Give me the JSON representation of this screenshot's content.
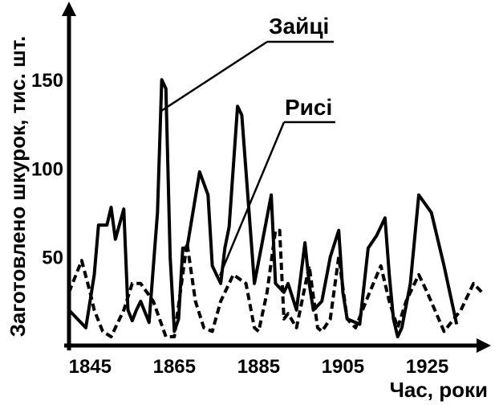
{
  "chart_data": {
    "type": "line",
    "xlabel": "Час, роки",
    "ylabel": "Заготовлено шкурок, тис. шт.",
    "xlim": [
      1840,
      1939
    ],
    "ylim": [
      0,
      195
    ],
    "x_ticks": [
      "1845",
      "1865",
      "1885",
      "1905",
      "1925"
    ],
    "y_ticks": [
      "50",
      "100",
      "150"
    ],
    "grid": false,
    "series": [
      {
        "name": "Зайці",
        "color": "#000000",
        "style": "solid",
        "points": [
          [
            1840,
            20
          ],
          [
            1844,
            10
          ],
          [
            1846,
            40
          ],
          [
            1847,
            68
          ],
          [
            1849,
            68
          ],
          [
            1850,
            78
          ],
          [
            1851,
            60
          ],
          [
            1853,
            77
          ],
          [
            1854,
            20
          ],
          [
            1855,
            14
          ],
          [
            1856,
            20
          ],
          [
            1857,
            25
          ],
          [
            1859,
            13
          ],
          [
            1861,
            75
          ],
          [
            1862,
            150
          ],
          [
            1863,
            145
          ],
          [
            1864,
            50
          ],
          [
            1865,
            8
          ],
          [
            1866,
            15
          ],
          [
            1867,
            55
          ],
          [
            1868,
            55
          ],
          [
            1871,
            98
          ],
          [
            1873,
            85
          ],
          [
            1874,
            45
          ],
          [
            1876,
            35
          ],
          [
            1877,
            55
          ],
          [
            1878,
            67
          ],
          [
            1880,
            135
          ],
          [
            1881,
            130
          ],
          [
            1884,
            35
          ],
          [
            1886,
            60
          ],
          [
            1888,
            85
          ],
          [
            1889,
            35
          ],
          [
            1891,
            30
          ],
          [
            1892,
            35
          ],
          [
            1894,
            20
          ],
          [
            1896,
            58
          ],
          [
            1897,
            35
          ],
          [
            1898,
            20
          ],
          [
            1900,
            25
          ],
          [
            1902,
            50
          ],
          [
            1904,
            65
          ],
          [
            1905,
            30
          ],
          [
            1906,
            15
          ],
          [
            1909,
            12
          ],
          [
            1911,
            55
          ],
          [
            1913,
            62
          ],
          [
            1915,
            72
          ],
          [
            1916,
            40
          ],
          [
            1917,
            15
          ],
          [
            1918,
            5
          ],
          [
            1919,
            10
          ],
          [
            1921,
            35
          ],
          [
            1923,
            85
          ],
          [
            1926,
            75
          ],
          [
            1929,
            45
          ],
          [
            1932,
            12
          ]
        ]
      },
      {
        "name": "Рисі",
        "color": "#000000",
        "style": "dashed",
        "points": [
          [
            1840,
            30
          ],
          [
            1843,
            48
          ],
          [
            1845,
            30
          ],
          [
            1846,
            20
          ],
          [
            1848,
            8
          ],
          [
            1850,
            5
          ],
          [
            1853,
            20
          ],
          [
            1855,
            35
          ],
          [
            1857,
            35
          ],
          [
            1860,
            25
          ],
          [
            1863,
            5
          ],
          [
            1865,
            5
          ],
          [
            1868,
            58
          ],
          [
            1870,
            25
          ],
          [
            1872,
            10
          ],
          [
            1874,
            8
          ],
          [
            1876,
            25
          ],
          [
            1879,
            40
          ],
          [
            1882,
            35
          ],
          [
            1884,
            10
          ],
          [
            1885,
            8
          ],
          [
            1887,
            30
          ],
          [
            1889,
            65
          ],
          [
            1890,
            65
          ],
          [
            1891,
            15
          ],
          [
            1892,
            18
          ],
          [
            1894,
            10
          ],
          [
            1897,
            45
          ],
          [
            1899,
            10
          ],
          [
            1900,
            8
          ],
          [
            1902,
            15
          ],
          [
            1904,
            50
          ],
          [
            1906,
            15
          ],
          [
            1908,
            10
          ],
          [
            1911,
            28
          ],
          [
            1914,
            45
          ],
          [
            1916,
            25
          ],
          [
            1918,
            10
          ],
          [
            1920,
            25
          ],
          [
            1923,
            40
          ],
          [
            1925,
            30
          ],
          [
            1929,
            8
          ],
          [
            1933,
            20
          ],
          [
            1936,
            35
          ],
          [
            1938,
            30
          ]
        ]
      }
    ]
  }
}
